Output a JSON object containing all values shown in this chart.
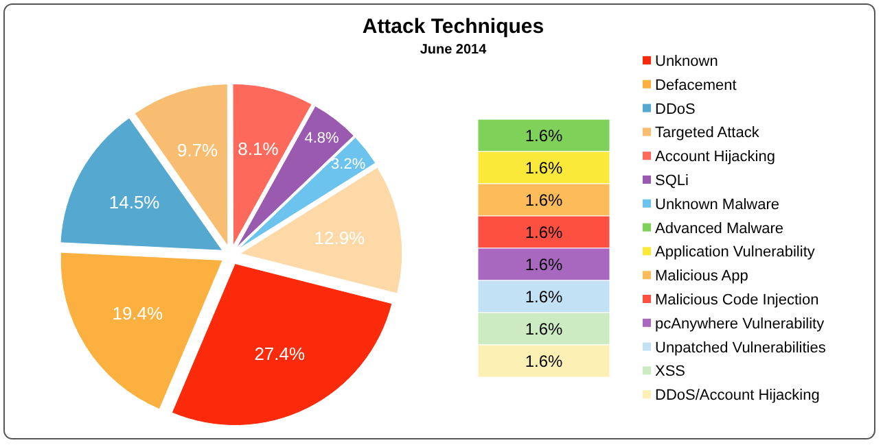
{
  "chart_data": [
    {
      "type": "pie",
      "title": "Attack Techniques",
      "subtitle": "June 2014",
      "legend": "right",
      "categories": [
        "Unknown",
        "Defacement",
        "DDoS",
        "Targeted Attack",
        "Account Hijacking",
        "SQLi",
        "Unknown Malware",
        null
      ],
      "values": [
        27.4,
        19.4,
        14.5,
        9.7,
        8.1,
        4.8,
        3.2,
        12.9
      ],
      "colors": [
        "#fa2a0a",
        "#fbb040",
        "#55a9d1",
        "#f8bd70",
        "#fd6a5c",
        "#9a5ab0",
        "#6cc4ee",
        "#fdd9a8"
      ],
      "value_labels": [
        "27.4%",
        "19.4%",
        "14.5%",
        "9.7%",
        "8.1%",
        "4.8%",
        "3.2%",
        "12.9%"
      ]
    },
    {
      "type": "bar",
      "stacked": true,
      "legend": "right",
      "categories": [
        null
      ],
      "series": [
        {
          "name": "Advanced Malware",
          "color": "#7fd15a",
          "values": [
            1.6
          ],
          "value_labels": [
            "1.6%"
          ]
        },
        {
          "name": "Application Vulnerability",
          "color": "#fbe93a",
          "values": [
            1.6
          ],
          "value_labels": [
            "1.6%"
          ]
        },
        {
          "name": "Malicious App",
          "color": "#fdbb5a",
          "values": [
            1.6
          ],
          "value_labels": [
            "1.6%"
          ]
        },
        {
          "name": "Malicious Code Injection",
          "color": "#fd5040",
          "values": [
            1.6
          ],
          "value_labels": [
            "1.6%"
          ]
        },
        {
          "name": "pcAnywhere Vulnerability",
          "color": "#a868c0",
          "values": [
            1.6
          ],
          "value_labels": [
            "1.6%"
          ]
        },
        {
          "name": "Unpatched Vulnerabilities",
          "color": "#c3e1f5",
          "values": [
            1.6
          ],
          "value_labels": [
            "1.6%"
          ]
        },
        {
          "name": "XSS",
          "color": "#cdebc3",
          "values": [
            1.6
          ],
          "value_labels": [
            "1.6%"
          ]
        },
        {
          "name": "DDoS/Account Hijacking",
          "color": "#fdf0b5",
          "values": [
            1.6
          ],
          "value_labels": [
            "1.6%"
          ]
        }
      ]
    }
  ]
}
